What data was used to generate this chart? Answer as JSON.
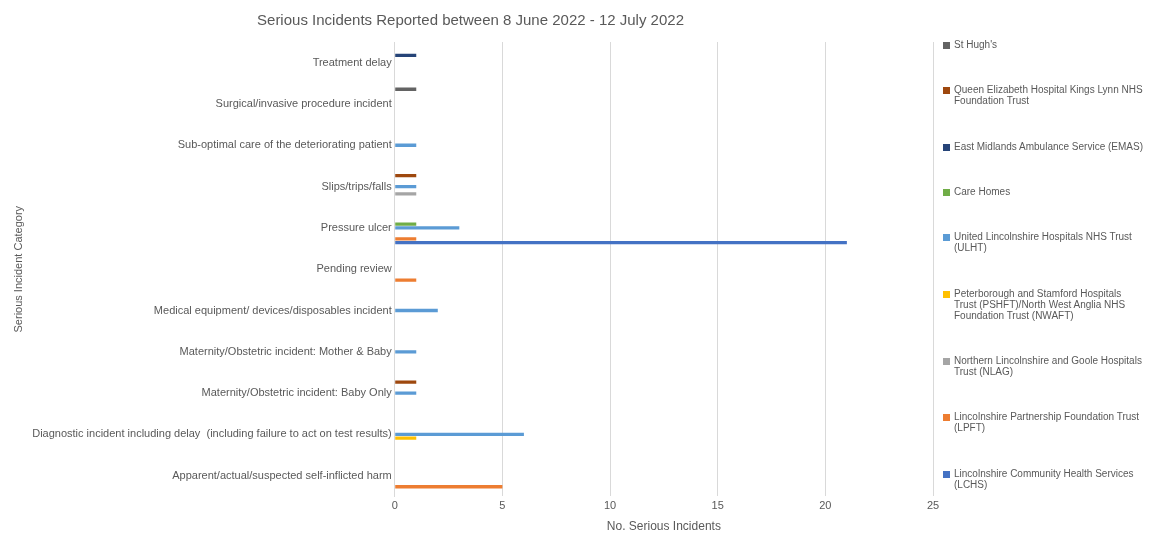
{
  "chart_data": {
    "type": "bar",
    "orientation": "horizontal",
    "title": "Serious Incidents Reported between 8 June 2022 - 12 July 2022",
    "xlabel": "No. Serious Incidents",
    "ylabel": "Serious Incident Category",
    "categories": [
      "Treatment delay",
      "Surgical/invasive procedure incident",
      "Sub-optimal care of the deteriorating patient",
      "Slips/trips/falls",
      "Pressure ulcer",
      "Pending review",
      "Medical equipment/ devices/disposables incident",
      "Maternity/Obstetric incident: Mother & Baby",
      "Maternity/Obstetric incident: Baby Only",
      "Diagnostic incident including delay  (including failure to act on test results)",
      "Apparent/actual/suspected self-inflicted harm"
    ],
    "series": [
      {
        "name": "St Hugh's",
        "color": "#636363",
        "values": [
          null,
          1,
          null,
          null,
          null,
          null,
          null,
          null,
          null,
          null,
          null
        ]
      },
      {
        "name": "Queen Elizabeth Hospital Kings Lynn NHS Foundation Trust",
        "color": "#9e480e",
        "values": [
          null,
          null,
          null,
          1,
          null,
          null,
          null,
          null,
          1,
          null,
          null
        ]
      },
      {
        "name": "East Midlands Ambulance Service (EMAS)",
        "color": "#264478",
        "values": [
          1,
          null,
          null,
          null,
          null,
          null,
          null,
          null,
          null,
          null,
          null
        ]
      },
      {
        "name": "Care Homes",
        "color": "#70ad47",
        "values": [
          null,
          null,
          null,
          null,
          1,
          null,
          null,
          null,
          null,
          null,
          null
        ]
      },
      {
        "name": "United Lincolnshire Hospitals NHS Trust (ULHT)",
        "color": "#5b9bd5",
        "values": [
          null,
          null,
          1,
          1,
          3,
          null,
          2,
          1,
          1,
          6,
          null
        ]
      },
      {
        "name": "Peterborough and Stamford Hospitals Trust (PSHFT)/North West Anglia NHS Foundation Trust (NWAFT)",
        "color": "#ffc000",
        "values": [
          null,
          null,
          null,
          null,
          null,
          null,
          null,
          null,
          null,
          1,
          null
        ]
      },
      {
        "name": "Northern Lincolnshire and Goole Hospitals Trust (NLAG)",
        "color": "#a5a5a5",
        "values": [
          null,
          null,
          null,
          1,
          null,
          null,
          null,
          null,
          null,
          null,
          null
        ]
      },
      {
        "name": "Lincolnshire Partnership Foundation Trust (LPFT)",
        "color": "#ed7d31",
        "values": [
          null,
          null,
          null,
          null,
          1,
          1,
          null,
          null,
          null,
          null,
          5
        ]
      },
      {
        "name": "Lincolnshire Community Health Services (LCHS)",
        "color": "#4472c4",
        "values": [
          null,
          null,
          null,
          null,
          21,
          null,
          null,
          null,
          null,
          null,
          null
        ]
      }
    ],
    "xlim": [
      0,
      25
    ],
    "xticks": [
      0,
      5,
      10,
      15,
      20,
      25
    ],
    "grid": "x",
    "legend": "right"
  }
}
